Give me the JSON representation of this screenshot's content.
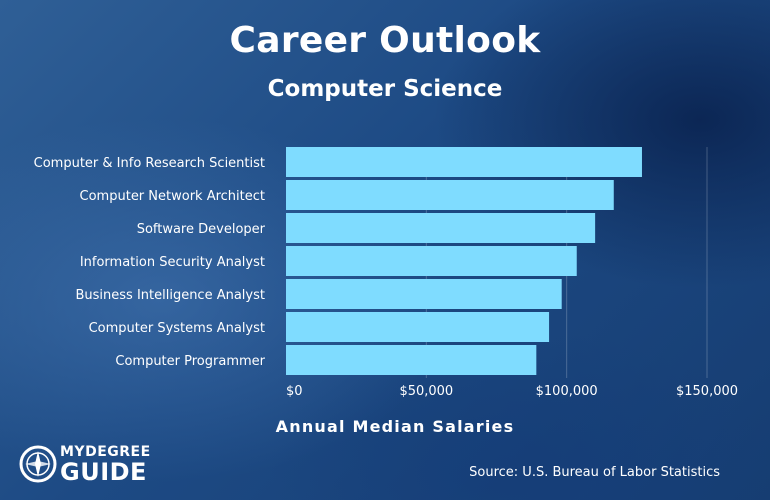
{
  "chart_data": {
    "type": "bar",
    "orientation": "horizontal",
    "title": "Career Outlook",
    "subtitle": "Computer Science",
    "categories": [
      "Computer & Info Research Scientist",
      "Computer Network Architect",
      "Software Developer",
      "Information Security Analyst",
      "Business Intelligence Analyst",
      "Computer Systems Analyst",
      "Computer Programmer"
    ],
    "values": [
      126830,
      116780,
      110140,
      103590,
      98230,
      93730,
      89190
    ],
    "xlabel": "Annual Median Salaries",
    "ylabel": "",
    "xlim": [
      0,
      150000
    ],
    "ticks": [
      "$0",
      "$50,000",
      "$100,000",
      "$150,000"
    ],
    "tick_values": [
      0,
      50000,
      100000,
      150000
    ],
    "bar_color": "#7fdcff",
    "grid": true
  },
  "source": "Source: U.S. Bureau of Labor Statistics",
  "logo": {
    "line1": "MYDEGREE",
    "line2": "GUIDE"
  }
}
